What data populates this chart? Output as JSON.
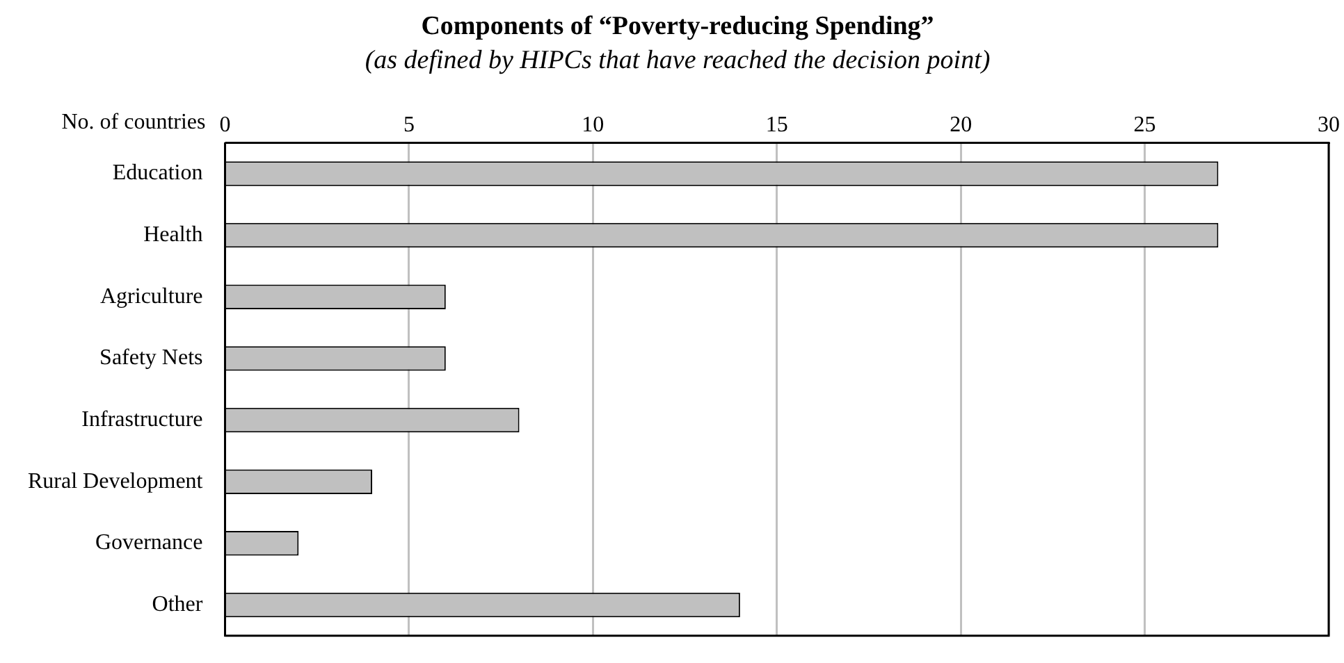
{
  "chart_data": {
    "type": "bar",
    "orientation": "horizontal",
    "title": "Components of “Poverty-reducing Spending”",
    "subtitle": "(as defined by HIPCs that have reached the decision point)",
    "xlabel": "No. of countries",
    "categories": [
      "Education",
      "Health",
      "Agriculture",
      "Safety Nets",
      "Infrastructure",
      "Rural Development",
      "Governance",
      "Other"
    ],
    "values": [
      27,
      27,
      6,
      6,
      8,
      4,
      2,
      14
    ],
    "color": "#c0c0c0",
    "xlim": [
      0,
      30
    ],
    "xticks": [
      0,
      5,
      10,
      15,
      20,
      25,
      30
    ],
    "grid": "x",
    "legend": false
  }
}
